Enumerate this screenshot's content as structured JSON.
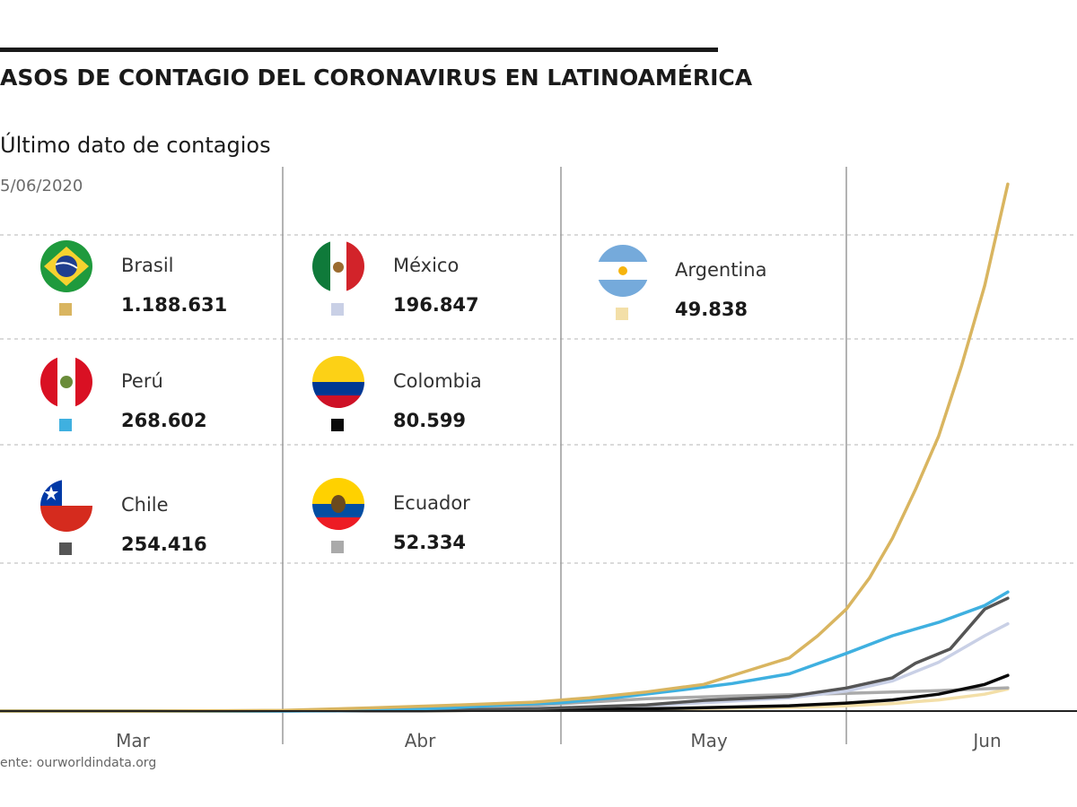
{
  "title": "ASOS DE CONTAGIO DEL CORONAVIRUS EN LATINOAMÉRICA",
  "subtitle": "Último dato de contagios",
  "date": "5/06/2020",
  "source": "ente: ourworldindata.org",
  "legend": [
    {
      "country": "Brasil",
      "value": "1.188.631",
      "color": "#d9b560",
      "flag": "brazil-flag-icon"
    },
    {
      "country": "México",
      "value": "196.847",
      "color": "#c9d0e6",
      "flag": "mexico-flag-icon"
    },
    {
      "country": "Argentina",
      "value": "49.838",
      "color": "#f3dfa8",
      "flag": "argentina-flag-icon"
    },
    {
      "country": "Perú",
      "value": "268.602",
      "color": "#3fb0e0",
      "flag": "peru-flag-icon"
    },
    {
      "country": "Colombia",
      "value": "80.599",
      "color": "#0a0a0a",
      "flag": "colombia-flag-icon"
    },
    {
      "country": "Chile",
      "value": "254.416",
      "color": "#555555",
      "flag": "chile-flag-icon"
    },
    {
      "country": "Ecuador",
      "value": "52.334",
      "color": "#aaaaaa",
      "flag": "ecuador-flag-icon"
    }
  ],
  "chart_data": {
    "type": "line",
    "categories": [
      "Mar",
      "Abr",
      "May",
      "Jun"
    ],
    "grid": "dashed horizontal lines, solid vertical month separators",
    "series": [
      {
        "name": "Brasil",
        "color": "#d9b560",
        "x": [
          0,
          0.5,
          1.0,
          1.3,
          1.6,
          1.9,
          2.1,
          2.3,
          2.5,
          2.65,
          2.8,
          2.9,
          3.0,
          3.1,
          3.2,
          3.3,
          3.4,
          3.5,
          3.6,
          3.7
        ],
        "y": [
          0,
          100,
          1500,
          6800,
          13000,
          20000,
          30000,
          43000,
          60000,
          90000,
          120000,
          170000,
          230000,
          300000,
          390000,
          500000,
          620000,
          780000,
          960000,
          1188631
        ]
      },
      {
        "name": "Perú",
        "color": "#3fb0e0",
        "x": [
          0,
          0.6,
          1.0,
          1.3,
          1.6,
          1.8,
          2.0,
          2.2,
          2.4,
          2.6,
          2.8,
          3.0,
          3.2,
          3.4,
          3.6,
          3.7
        ],
        "y": [
          0,
          50,
          300,
          1500,
          7000,
          14000,
          19000,
          31000,
          46000,
          62000,
          84000,
          130000,
          170000,
          200000,
          238000,
          268602
        ]
      },
      {
        "name": "Chile",
        "color": "#555555",
        "x": [
          0,
          0.8,
          1.5,
          1.9,
          2.3,
          2.5,
          2.8,
          3.0,
          3.2,
          3.3,
          3.45,
          3.6,
          3.7
        ],
        "y": [
          0,
          100,
          1500,
          5000,
          14000,
          24000,
          33000,
          52000,
          75000,
          108000,
          140000,
          230000,
          254416
        ]
      },
      {
        "name": "México",
        "color": "#c9d0e6",
        "x": [
          0,
          0.8,
          1.5,
          2.0,
          2.4,
          2.8,
          3.0,
          3.2,
          3.4,
          3.6,
          3.7
        ],
        "y": [
          0,
          50,
          1000,
          7000,
          15000,
          30000,
          45000,
          68000,
          110000,
          170000,
          196847
        ]
      },
      {
        "name": "Colombia",
        "color": "#0a0a0a",
        "x": [
          0,
          0.8,
          1.5,
          2.0,
          2.4,
          2.8,
          3.0,
          3.2,
          3.4,
          3.6,
          3.7
        ],
        "y": [
          0,
          50,
          800,
          2800,
          6000,
          12000,
          18000,
          25000,
          38000,
          60000,
          80599
        ]
      },
      {
        "name": "Ecuador",
        "color": "#aaaaaa",
        "x": [
          0,
          0.8,
          1.5,
          1.9,
          2.3,
          2.6,
          3.0,
          3.4,
          3.7
        ],
        "y": [
          0,
          50,
          2000,
          13000,
          28000,
          34000,
          40000,
          46000,
          52334
        ]
      },
      {
        "name": "Argentina",
        "color": "#f3dfa8",
        "x": [
          0,
          0.8,
          1.5,
          2.0,
          2.4,
          2.8,
          3.0,
          3.2,
          3.4,
          3.6,
          3.7
        ],
        "y": [
          0,
          30,
          800,
          3000,
          5000,
          8000,
          12000,
          17000,
          25000,
          38000,
          49838
        ]
      }
    ],
    "ylim": [
      0,
      1250000
    ]
  }
}
